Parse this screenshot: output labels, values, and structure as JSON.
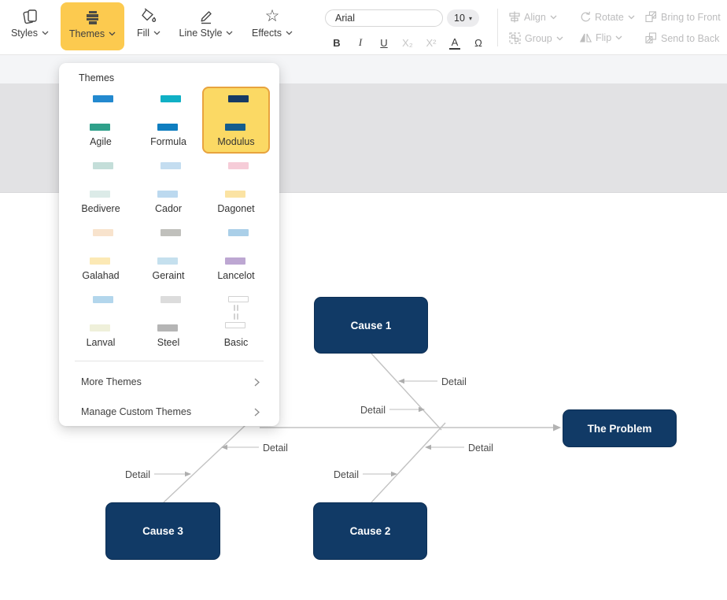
{
  "toolbar": {
    "styles_label": "Styles",
    "themes_label": "Themes",
    "fill_label": "Fill",
    "line_style_label": "Line Style",
    "effects_label": "Effects",
    "effects_star_glyph": "☆",
    "font_family_value": "Arial",
    "font_size_value": "10",
    "font_size_caret_glyph": "▾",
    "format_buttons": [
      {
        "name": "bold",
        "glyph": "B",
        "enabled": true
      },
      {
        "name": "italic",
        "glyph": "I",
        "enabled": true
      },
      {
        "name": "underline",
        "glyph": "U",
        "enabled": true
      },
      {
        "name": "subscript",
        "glyph": "X₂",
        "enabled": false
      },
      {
        "name": "superscript",
        "glyph": "X²",
        "enabled": false
      },
      {
        "name": "text-color",
        "glyph": "A",
        "enabled": true
      },
      {
        "name": "special-characters",
        "glyph": "Ω",
        "enabled": true
      }
    ],
    "arrange": {
      "align_label": "Align",
      "rotate_label": "Rotate",
      "bring_to_front_label": "Bring to Front",
      "group_label": "Group",
      "flip_label": "Flip",
      "send_to_back_label": "Send to Back"
    }
  },
  "themes_panel": {
    "title": "Themes",
    "selected_theme": "Modulus",
    "selected_tile_bg": "#fbd964",
    "selected_tile_border": "#e8a33e",
    "themes": [
      {
        "label": "Agile",
        "selected": false,
        "colors": [
          "#2389cf",
          "#94c13d",
          "#f0702c",
          "#4667b2",
          "#bf4a68",
          "#2fa08a"
        ]
      },
      {
        "label": "Formula",
        "selected": false,
        "colors": [
          "#10b0c5",
          "#173f6b",
          "#c41761",
          "#fbab18",
          "#ea2330",
          "#0f7ec0"
        ]
      },
      {
        "label": "Modulus",
        "selected": true,
        "colors": [
          "#173a64",
          "#2196d3",
          "#76b043",
          "#f59329",
          "#9fb73b",
          "#145d8d"
        ]
      },
      {
        "label": "Bedivere",
        "selected": false,
        "colors": [
          "#c4ded9",
          "#a9c0cc",
          "#84b8ac",
          "#a3c4de",
          "#d3e5ee",
          "#dcebe8"
        ]
      },
      {
        "label": "Cador",
        "selected": false,
        "colors": [
          "#c4ddf0",
          "#5d9dd3",
          "#4f94ce",
          "#3d85c8",
          "#a7cce8",
          "#bcd9ef"
        ]
      },
      {
        "label": "Dagonet",
        "selected": false,
        "colors": [
          "#f6ccd8",
          "#cbbcdb",
          "#a9a3cc",
          "#f2a0a6",
          "#f8cd8e",
          "#fbe3a3"
        ]
      },
      {
        "label": "Galahad",
        "selected": false,
        "colors": [
          "#f8e3cd",
          "#fbd9b0",
          "#f7b45f",
          "#f7c148",
          "#fbd46a",
          "#fce9b5"
        ]
      },
      {
        "label": "Geraint",
        "selected": false,
        "colors": [
          "#c0c0bc",
          "#7da7c9",
          "#cbb795",
          "#988a7f",
          "#d6ddb5",
          "#c5e0ee"
        ]
      },
      {
        "label": "Lancelot",
        "selected": false,
        "colors": [
          "#aacfe8",
          "#d4e9f2",
          "#b4d689",
          "#f9d079",
          "#f5a7b0",
          "#bda7d2"
        ]
      },
      {
        "label": "Lanval",
        "selected": false,
        "colors": [
          "#b3d6ec",
          "#9fc6de",
          "#6699c4",
          "#e4ecd1",
          "#eef0d8",
          "#eff0da"
        ]
      },
      {
        "label": "Steel",
        "selected": false,
        "colors": [
          "#dcdcdc",
          "#a9a9a9",
          "#949494",
          "#9b9b9b",
          "#d0d0d0",
          "#b5b5b5"
        ]
      },
      {
        "label": "Basic",
        "selected": false,
        "colors": [
          "#ffffff",
          "#ffffff",
          "#ffffff",
          "#ffffff",
          "#ffffff",
          "#ffffff"
        ]
      }
    ],
    "more_themes_label": "More Themes",
    "manage_custom_themes_label": "Manage Custom Themes"
  },
  "canvas": {
    "diagram_type": "fishbone",
    "shapes": [
      {
        "label": "Cause 1"
      },
      {
        "label": "The Problem"
      },
      {
        "label": "Cause 3"
      },
      {
        "label": "Cause 2"
      }
    ],
    "detail_labels": [
      "Detail",
      "Detail",
      "Detail",
      "Detail",
      "Detail",
      "Detail"
    ],
    "colors": {
      "shape_fill": "#113a66",
      "shape_text": "#ffffff",
      "line": "#c2c2c2"
    }
  }
}
